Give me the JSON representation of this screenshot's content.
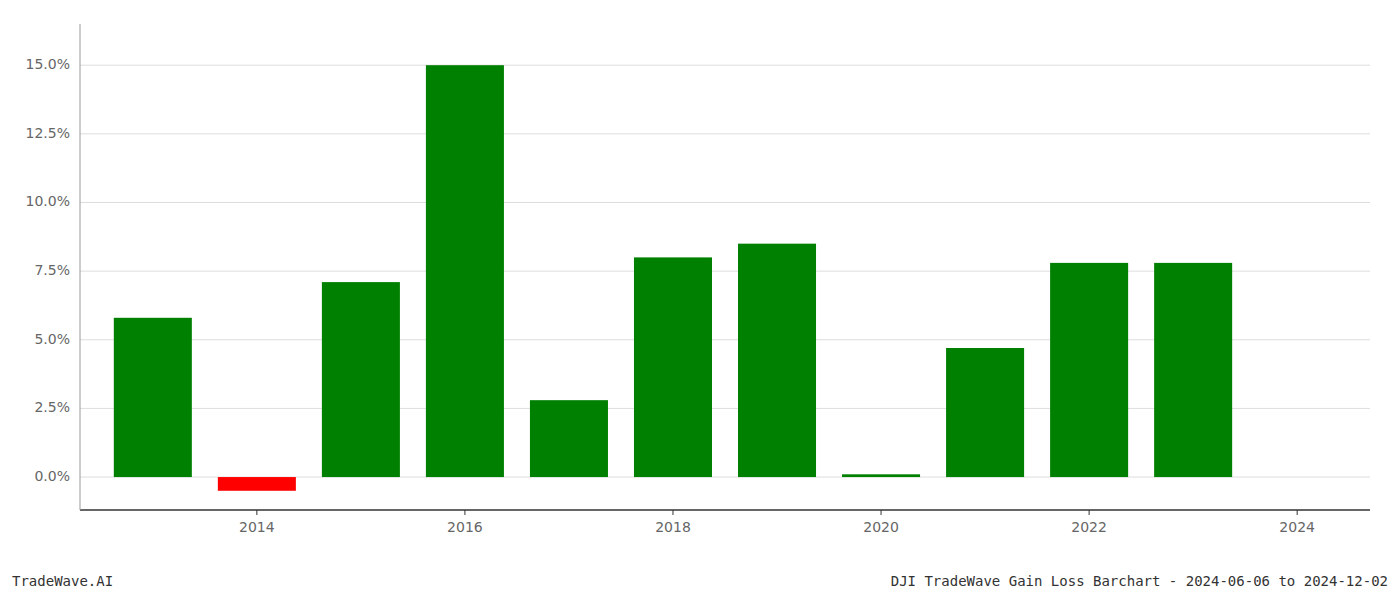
{
  "chart_data": {
    "type": "bar",
    "title": "DJI TradeWave Gain Loss Barchart - 2024-06-06 to 2024-12-02",
    "annotations": [
      "TradeWave.AI"
    ],
    "x": [
      2013,
      2014,
      2015,
      2016,
      2017,
      2018,
      2019,
      2020,
      2021,
      2022,
      2023
    ],
    "values": [
      0.058,
      -0.005,
      0.071,
      0.15,
      0.028,
      0.08,
      0.085,
      0.001,
      0.047,
      0.078,
      0.078
    ],
    "colors": [
      "#008000",
      "#ff0000",
      "#008000",
      "#008000",
      "#008000",
      "#008000",
      "#008000",
      "#008000",
      "#008000",
      "#008000",
      "#008000"
    ],
    "xlim": [
      2012.3,
      2024.7
    ],
    "xticks": [
      2014,
      2016,
      2018,
      2020,
      2022,
      2024
    ],
    "ylim": [
      -0.012,
      0.165
    ],
    "yticks": [
      {
        "value": 0.0,
        "label": "0.0%"
      },
      {
        "value": 0.025,
        "label": "2.5%"
      },
      {
        "value": 0.05,
        "label": "5.0%"
      },
      {
        "value": 0.075,
        "label": "7.5%"
      },
      {
        "value": 0.1,
        "label": "10.0%"
      },
      {
        "value": 0.125,
        "label": "12.5%"
      },
      {
        "value": 0.15,
        "label": "15.0%"
      }
    ],
    "grid": true
  }
}
